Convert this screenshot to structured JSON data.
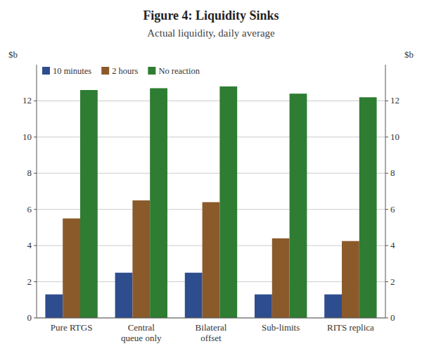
{
  "chart_data": {
    "type": "bar",
    "title": "Figure 4: Liquidity Sinks",
    "subtitle": "Actual liquidity, daily average",
    "ylabel": "$b",
    "y2label": "$b",
    "categories": [
      "Pure RTGS",
      "Central\nqueue only",
      "Bilateral\noffset",
      "Sub-limits",
      "RITS replica"
    ],
    "series": [
      {
        "name": "10 minutes",
        "color": "#2E4D8F",
        "values": [
          1.3,
          2.5,
          2.5,
          1.3,
          1.3
        ]
      },
      {
        "name": "2 hours",
        "color": "#8B5A2B",
        "values": [
          5.5,
          6.5,
          6.4,
          4.4,
          4.25
        ]
      },
      {
        "name": "No reaction",
        "color": "#2E7D32",
        "values": [
          12.6,
          12.7,
          12.8,
          12.4,
          12.2
        ]
      }
    ],
    "ylim": [
      0,
      14
    ],
    "yticks": [
      0,
      2,
      4,
      6,
      8,
      10,
      12
    ],
    "y2lim": [
      0,
      14
    ],
    "y2ticks": [
      0,
      2,
      4,
      6,
      8,
      10,
      12
    ],
    "grid": true,
    "legend": "upper left"
  }
}
